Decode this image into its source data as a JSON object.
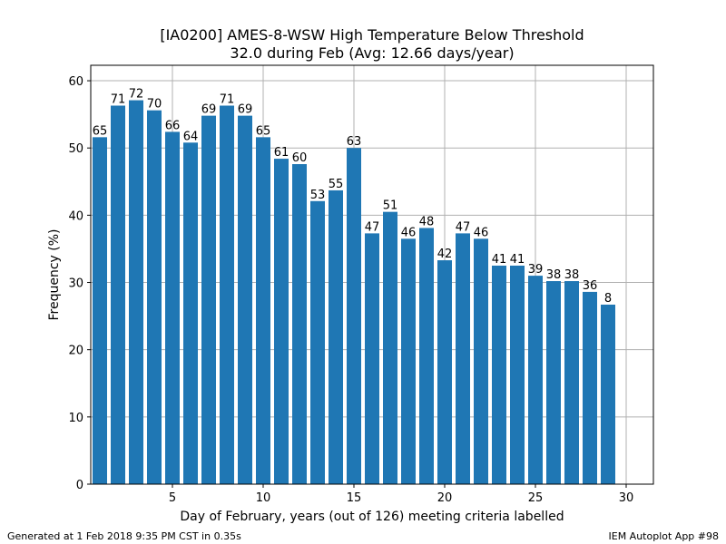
{
  "footer": {
    "left": "Generated at 1 Feb 2018 9:35 PM CST in 0.35s",
    "right": "IEM Autoplot App #98"
  },
  "chart_data": {
    "type": "bar",
    "title": "[IA0200] AMES-8-WSW High Temperature Below Threshold",
    "subtitle": "32.0 during Feb (Avg: 12.66 days/year)",
    "xlabel": "Day of February, years (out of 126) meeting criteria labelled",
    "ylabel": "Frequency (%)",
    "xlim": [
      0.5,
      31.5
    ],
    "ylim": [
      0,
      62.3
    ],
    "xticks": [
      5,
      10,
      15,
      20,
      25,
      30
    ],
    "yticks": [
      0,
      10,
      20,
      30,
      40,
      50,
      60
    ],
    "grid": true,
    "bar_color": "#1f77b4",
    "grid_color": "#b0b0b0",
    "x": [
      1,
      2,
      3,
      4,
      5,
      6,
      7,
      8,
      9,
      10,
      11,
      12,
      13,
      14,
      15,
      16,
      17,
      18,
      19,
      20,
      21,
      22,
      23,
      24,
      25,
      26,
      27,
      28,
      29
    ],
    "values": [
      51.6,
      56.3,
      57.1,
      55.6,
      52.4,
      50.8,
      54.8,
      56.3,
      54.8,
      51.6,
      48.4,
      47.6,
      42.1,
      43.7,
      50.0,
      37.3,
      40.5,
      36.5,
      38.1,
      33.3,
      37.3,
      36.5,
      32.5,
      32.5,
      31.0,
      30.2,
      30.2,
      28.6,
      26.7
    ],
    "labels": [
      "65",
      "71",
      "72",
      "70",
      "66",
      "64",
      "69",
      "71",
      "69",
      "65",
      "61",
      "60",
      "53",
      "55",
      "63",
      "47",
      "51",
      "46",
      "48",
      "42",
      "47",
      "46",
      "41",
      "41",
      "39",
      "38",
      "38",
      "36",
      "8"
    ]
  }
}
